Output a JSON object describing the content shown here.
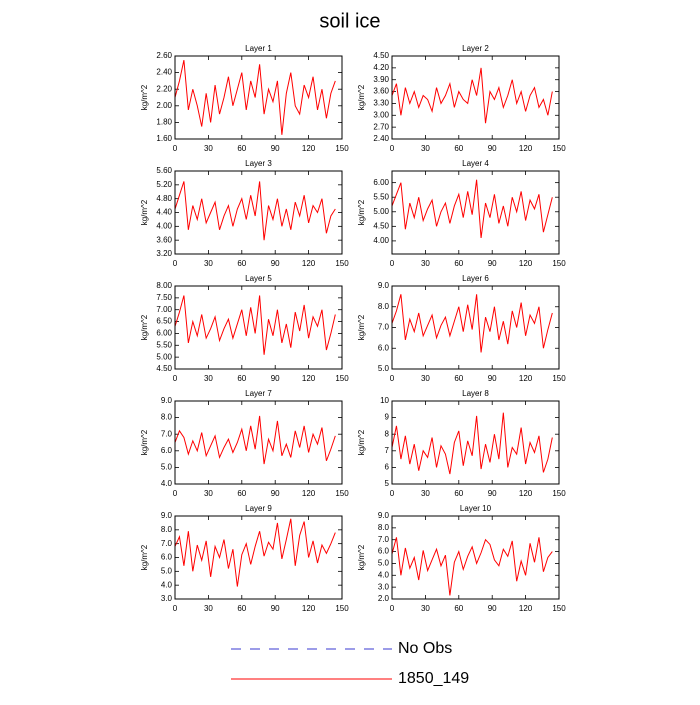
{
  "title": "soil ice",
  "legend": [
    {
      "name": "No Obs",
      "color": "#3a3ad0",
      "style": "dashed"
    },
    {
      "name": "1850_149",
      "color": "#ff0000",
      "style": "solid"
    }
  ],
  "chart_data": [
    {
      "type": "line",
      "title": "Layer 1",
      "ylabel": "kg/m^2",
      "xlim": [
        0,
        150
      ],
      "xticks": [
        0,
        30,
        60,
        90,
        120,
        150
      ],
      "ylim": [
        1.6,
        2.6
      ],
      "yticks": [
        {
          "value": 1.6,
          "label": "1.60"
        },
        {
          "value": 1.8,
          "label": "1.80"
        },
        {
          "value": 2.0,
          "label": "2.00"
        },
        {
          "value": 2.2,
          "label": "2.20"
        },
        {
          "value": 2.4,
          "label": "2.40"
        },
        {
          "value": 2.6,
          "label": "2.60"
        }
      ],
      "x": [
        0,
        4,
        8,
        12,
        16,
        20,
        24,
        28,
        32,
        36,
        40,
        44,
        48,
        52,
        56,
        60,
        64,
        68,
        72,
        76,
        80,
        84,
        88,
        92,
        96,
        100,
        104,
        108,
        112,
        116,
        120,
        124,
        128,
        132,
        136,
        140,
        144
      ],
      "series": [
        {
          "color": "#ff0000",
          "values": [
            2.1,
            2.3,
            2.55,
            1.95,
            2.2,
            2.0,
            1.75,
            2.15,
            1.8,
            2.25,
            1.9,
            2.1,
            2.35,
            2.0,
            2.2,
            2.4,
            1.95,
            2.3,
            2.1,
            2.5,
            1.9,
            2.2,
            2.05,
            2.3,
            1.65,
            2.15,
            2.4,
            2.0,
            1.9,
            2.25,
            2.1,
            2.35,
            1.95,
            2.2,
            1.85,
            2.15,
            2.3
          ]
        }
      ]
    },
    {
      "type": "line",
      "title": "Layer 2",
      "ylabel": "kg/m^2",
      "xlim": [
        0,
        150
      ],
      "xticks": [
        0,
        30,
        60,
        90,
        120,
        150
      ],
      "ylim": [
        2.4,
        4.5
      ],
      "yticks": [
        {
          "value": 2.4,
          "label": "2.40"
        },
        {
          "value": 2.7,
          "label": "2.70"
        },
        {
          "value": 3.0,
          "label": "3.00"
        },
        {
          "value": 3.3,
          "label": "3.30"
        },
        {
          "value": 3.6,
          "label": "3.60"
        },
        {
          "value": 3.9,
          "label": "3.90"
        },
        {
          "value": 4.2,
          "label": "4.20"
        },
        {
          "value": 4.5,
          "label": "4.50"
        }
      ],
      "x": [
        0,
        4,
        8,
        12,
        16,
        20,
        24,
        28,
        32,
        36,
        40,
        44,
        48,
        52,
        56,
        60,
        64,
        68,
        72,
        76,
        80,
        84,
        88,
        92,
        96,
        100,
        104,
        108,
        112,
        116,
        120,
        124,
        128,
        132,
        136,
        140,
        144
      ],
      "series": [
        {
          "color": "#ff0000",
          "values": [
            3.5,
            3.8,
            3.0,
            3.7,
            3.3,
            3.6,
            3.2,
            3.5,
            3.4,
            3.1,
            3.7,
            3.3,
            3.5,
            3.8,
            3.2,
            3.6,
            3.4,
            3.3,
            3.9,
            3.5,
            4.2,
            2.8,
            3.6,
            3.4,
            3.7,
            3.2,
            3.5,
            3.9,
            3.3,
            3.6,
            3.1,
            3.5,
            3.7,
            3.2,
            3.4,
            3.0,
            3.6
          ]
        }
      ]
    },
    {
      "type": "line",
      "title": "Layer 3",
      "ylabel": "kg/m^2",
      "xlim": [
        0,
        150
      ],
      "xticks": [
        0,
        30,
        60,
        90,
        120,
        150
      ],
      "ylim": [
        3.2,
        5.6
      ],
      "yticks": [
        {
          "value": 3.2,
          "label": "3.20"
        },
        {
          "value": 3.6,
          "label": "3.60"
        },
        {
          "value": 4.0,
          "label": "4.00"
        },
        {
          "value": 4.4,
          "label": "4.40"
        },
        {
          "value": 4.8,
          "label": "4.80"
        },
        {
          "value": 5.2,
          "label": "5.20"
        },
        {
          "value": 5.6,
          "label": "5.60"
        }
      ],
      "x": [
        0,
        4,
        8,
        12,
        16,
        20,
        24,
        28,
        32,
        36,
        40,
        44,
        48,
        52,
        56,
        60,
        64,
        68,
        72,
        76,
        80,
        84,
        88,
        92,
        96,
        100,
        104,
        108,
        112,
        116,
        120,
        124,
        128,
        132,
        136,
        140,
        144
      ],
      "series": [
        {
          "color": "#ff0000",
          "values": [
            4.5,
            4.9,
            5.3,
            3.9,
            4.6,
            4.2,
            4.8,
            4.1,
            4.4,
            4.7,
            3.9,
            4.3,
            4.6,
            4.0,
            4.5,
            4.8,
            4.2,
            4.9,
            4.3,
            5.3,
            3.6,
            4.6,
            4.2,
            4.8,
            4.0,
            4.5,
            3.9,
            4.7,
            4.3,
            4.9,
            4.1,
            4.6,
            4.4,
            4.8,
            3.8,
            4.3,
            4.5
          ]
        }
      ]
    },
    {
      "type": "line",
      "title": "Layer 4",
      "ylabel": "kg/m^2",
      "xlim": [
        0,
        150
      ],
      "xticks": [
        0,
        30,
        60,
        90,
        120,
        150
      ],
      "ylim": [
        3.55,
        6.4
      ],
      "yticks": [
        {
          "value": 4.0,
          "label": "4.00"
        },
        {
          "value": 4.5,
          "label": "4.50"
        },
        {
          "value": 5.0,
          "label": "5.00"
        },
        {
          "value": 5.5,
          "label": "5.50"
        },
        {
          "value": 6.0,
          "label": "6.00"
        }
      ],
      "x": [
        0,
        4,
        8,
        12,
        16,
        20,
        24,
        28,
        32,
        36,
        40,
        44,
        48,
        52,
        56,
        60,
        64,
        68,
        72,
        76,
        80,
        84,
        88,
        92,
        96,
        100,
        104,
        108,
        112,
        116,
        120,
        124,
        128,
        132,
        136,
        140,
        144
      ],
      "series": [
        {
          "color": "#ff0000",
          "values": [
            5.2,
            5.6,
            6.0,
            4.4,
            5.3,
            4.8,
            5.5,
            4.7,
            5.1,
            5.4,
            4.5,
            5.0,
            5.3,
            4.6,
            5.2,
            5.6,
            4.8,
            5.7,
            4.9,
            6.1,
            4.1,
            5.3,
            4.8,
            5.6,
            4.6,
            5.2,
            4.5,
            5.5,
            5.0,
            5.7,
            4.7,
            5.4,
            5.1,
            5.6,
            4.3,
            4.9,
            5.5
          ]
        }
      ]
    },
    {
      "type": "line",
      "title": "Layer 5",
      "ylabel": "kg/m^2",
      "xlim": [
        0,
        150
      ],
      "xticks": [
        0,
        30,
        60,
        90,
        120,
        150
      ],
      "ylim": [
        4.5,
        8.0
      ],
      "yticks": [
        {
          "value": 4.5,
          "label": "4.50"
        },
        {
          "value": 5.0,
          "label": "5.00"
        },
        {
          "value": 5.5,
          "label": "5.50"
        },
        {
          "value": 6.0,
          "label": "6.00"
        },
        {
          "value": 6.5,
          "label": "6.50"
        },
        {
          "value": 7.0,
          "label": "7.00"
        },
        {
          "value": 7.5,
          "label": "7.50"
        },
        {
          "value": 8.0,
          "label": "8.00"
        }
      ],
      "x": [
        0,
        4,
        8,
        12,
        16,
        20,
        24,
        28,
        32,
        36,
        40,
        44,
        48,
        52,
        56,
        60,
        64,
        68,
        72,
        76,
        80,
        84,
        88,
        92,
        96,
        100,
        104,
        108,
        112,
        116,
        120,
        124,
        128,
        132,
        136,
        140,
        144
      ],
      "series": [
        {
          "color": "#ff0000",
          "values": [
            6.3,
            6.9,
            7.6,
            5.6,
            6.5,
            5.9,
            6.8,
            5.8,
            6.2,
            6.7,
            5.7,
            6.2,
            6.6,
            5.8,
            6.4,
            7.0,
            5.9,
            7.1,
            6.0,
            7.6,
            5.1,
            6.6,
            5.9,
            7.0,
            5.6,
            6.4,
            5.4,
            6.9,
            6.1,
            7.2,
            5.8,
            6.7,
            6.3,
            7.0,
            5.3,
            6.0,
            6.8
          ]
        }
      ]
    },
    {
      "type": "line",
      "title": "Layer 6",
      "ylabel": "kg/m^2",
      "xlim": [
        0,
        150
      ],
      "xticks": [
        0,
        30,
        60,
        90,
        120,
        150
      ],
      "ylim": [
        5,
        9
      ],
      "yticks": [
        {
          "value": 5,
          "label": "5.0"
        },
        {
          "value": 6,
          "label": "6.0"
        },
        {
          "value": 7,
          "label": "7.0"
        },
        {
          "value": 8,
          "label": "8.0"
        },
        {
          "value": 9,
          "label": "9.0"
        }
      ],
      "x": [
        0,
        4,
        8,
        12,
        16,
        20,
        24,
        28,
        32,
        36,
        40,
        44,
        48,
        52,
        56,
        60,
        64,
        68,
        72,
        76,
        80,
        84,
        88,
        92,
        96,
        100,
        104,
        108,
        112,
        116,
        120,
        124,
        128,
        132,
        136,
        140,
        144
      ],
      "series": [
        {
          "color": "#ff0000",
          "values": [
            7.2,
            7.8,
            8.6,
            6.4,
            7.4,
            6.8,
            7.7,
            6.6,
            7.1,
            7.6,
            6.5,
            7.1,
            7.5,
            6.6,
            7.3,
            8.0,
            6.8,
            8.1,
            6.9,
            8.6,
            5.8,
            7.5,
            6.8,
            8.0,
            6.4,
            7.3,
            6.2,
            7.8,
            7.0,
            8.2,
            6.6,
            7.6,
            7.2,
            8.0,
            6.0,
            6.9,
            7.7
          ]
        }
      ]
    },
    {
      "type": "line",
      "title": "Layer 7",
      "ylabel": "kg/m^2",
      "xlim": [
        0,
        150
      ],
      "xticks": [
        0,
        30,
        60,
        90,
        120,
        150
      ],
      "ylim": [
        4,
        9
      ],
      "yticks": [
        {
          "value": 4,
          "label": "4.0"
        },
        {
          "value": 5,
          "label": "5.0"
        },
        {
          "value": 6,
          "label": "6.0"
        },
        {
          "value": 7,
          "label": "7.0"
        },
        {
          "value": 8,
          "label": "8.0"
        },
        {
          "value": 9,
          "label": "9.0"
        }
      ],
      "x": [
        0,
        4,
        8,
        12,
        16,
        20,
        24,
        28,
        32,
        36,
        40,
        44,
        48,
        52,
        56,
        60,
        64,
        68,
        72,
        76,
        80,
        84,
        88,
        92,
        96,
        100,
        104,
        108,
        112,
        116,
        120,
        124,
        128,
        132,
        136,
        140,
        144
      ],
      "series": [
        {
          "color": "#ff0000",
          "values": [
            6.5,
            7.2,
            6.8,
            5.8,
            6.6,
            6.0,
            7.1,
            5.7,
            6.3,
            6.9,
            5.6,
            6.2,
            6.7,
            5.9,
            6.5,
            7.3,
            6.0,
            7.5,
            6.1,
            8.1,
            5.2,
            6.7,
            6.0,
            7.8,
            5.7,
            6.4,
            5.6,
            7.2,
            6.2,
            7.5,
            5.9,
            7.0,
            6.4,
            7.4,
            5.4,
            6.1,
            6.9
          ]
        }
      ]
    },
    {
      "type": "line",
      "title": "Layer 8",
      "ylabel": "kg/m^2",
      "xlim": [
        0,
        150
      ],
      "xticks": [
        0,
        30,
        60,
        90,
        120,
        150
      ],
      "ylim": [
        5,
        10
      ],
      "yticks": [
        5,
        6,
        7,
        8,
        9,
        10
      ],
      "x": [
        0,
        4,
        8,
        12,
        16,
        20,
        24,
        28,
        32,
        36,
        40,
        44,
        48,
        52,
        56,
        60,
        64,
        68,
        72,
        76,
        80,
        84,
        88,
        92,
        96,
        100,
        104,
        108,
        112,
        116,
        120,
        124,
        128,
        132,
        136,
        140,
        144
      ],
      "series": [
        {
          "color": "#ff0000",
          "values": [
            7.2,
            8.5,
            6.5,
            7.9,
            6.2,
            7.4,
            5.8,
            7.0,
            6.6,
            7.8,
            6.0,
            7.3,
            6.8,
            5.6,
            7.5,
            8.2,
            6.1,
            7.6,
            6.7,
            9.1,
            5.9,
            7.4,
            6.3,
            8.0,
            6.5,
            9.3,
            6.0,
            7.2,
            6.8,
            8.4,
            6.2,
            7.5,
            6.9,
            7.9,
            5.7,
            6.5,
            7.8
          ]
        }
      ]
    },
    {
      "type": "line",
      "title": "Layer 9",
      "ylabel": "kg/m^2",
      "xlim": [
        0,
        150
      ],
      "xticks": [
        0,
        30,
        60,
        90,
        120,
        150
      ],
      "ylim": [
        3,
        9
      ],
      "yticks": [
        {
          "value": 3,
          "label": "3.0"
        },
        {
          "value": 4,
          "label": "4.0"
        },
        {
          "value": 5,
          "label": "5.0"
        },
        {
          "value": 6,
          "label": "6.0"
        },
        {
          "value": 7,
          "label": "7.0"
        },
        {
          "value": 8,
          "label": "8.0"
        },
        {
          "value": 9,
          "label": "9.0"
        }
      ],
      "x": [
        0,
        4,
        8,
        12,
        16,
        20,
        24,
        28,
        32,
        36,
        40,
        44,
        48,
        52,
        56,
        60,
        64,
        68,
        72,
        76,
        80,
        84,
        88,
        92,
        96,
        100,
        104,
        108,
        112,
        116,
        120,
        124,
        128,
        132,
        136,
        140,
        144
      ],
      "series": [
        {
          "color": "#ff0000",
          "values": [
            6.8,
            7.5,
            5.4,
            7.9,
            5.0,
            6.9,
            5.8,
            7.2,
            4.6,
            6.8,
            6.0,
            7.3,
            5.2,
            6.6,
            3.9,
            6.2,
            7.0,
            5.5,
            6.8,
            7.9,
            6.1,
            7.1,
            6.6,
            8.5,
            5.9,
            7.3,
            8.8,
            5.4,
            7.6,
            8.6,
            6.0,
            7.2,
            5.6,
            6.9,
            6.3,
            7.0,
            7.8
          ]
        }
      ]
    },
    {
      "type": "line",
      "title": "Layer 10",
      "ylabel": "kg/m^2",
      "xlim": [
        0,
        150
      ],
      "xticks": [
        0,
        30,
        60,
        90,
        120,
        150
      ],
      "ylim": [
        2,
        9
      ],
      "yticks": [
        {
          "value": 2,
          "label": "2.0"
        },
        {
          "value": 3,
          "label": "3.0"
        },
        {
          "value": 4,
          "label": "4.0"
        },
        {
          "value": 5,
          "label": "5.0"
        },
        {
          "value": 6,
          "label": "6.0"
        },
        {
          "value": 7,
          "label": "7.0"
        },
        {
          "value": 8,
          "label": "8.0"
        },
        {
          "value": 9,
          "label": "9.0"
        }
      ],
      "x": [
        0,
        4,
        8,
        12,
        16,
        20,
        24,
        28,
        32,
        36,
        40,
        44,
        48,
        52,
        56,
        60,
        64,
        68,
        72,
        76,
        80,
        84,
        88,
        92,
        96,
        100,
        104,
        108,
        112,
        116,
        120,
        124,
        128,
        132,
        136,
        140,
        144
      ],
      "series": [
        {
          "color": "#ff0000",
          "values": [
            5.8,
            7.2,
            4.0,
            6.3,
            4.6,
            5.5,
            3.6,
            6.1,
            4.4,
            5.3,
            6.2,
            4.8,
            5.7,
            2.3,
            5.1,
            6.0,
            4.5,
            5.6,
            6.4,
            5.0,
            5.9,
            7.0,
            6.6,
            5.3,
            4.8,
            6.2,
            5.6,
            6.9,
            3.5,
            5.2,
            4.0,
            6.7,
            5.1,
            7.2,
            4.3,
            5.5,
            6.0
          ]
        }
      ]
    }
  ]
}
